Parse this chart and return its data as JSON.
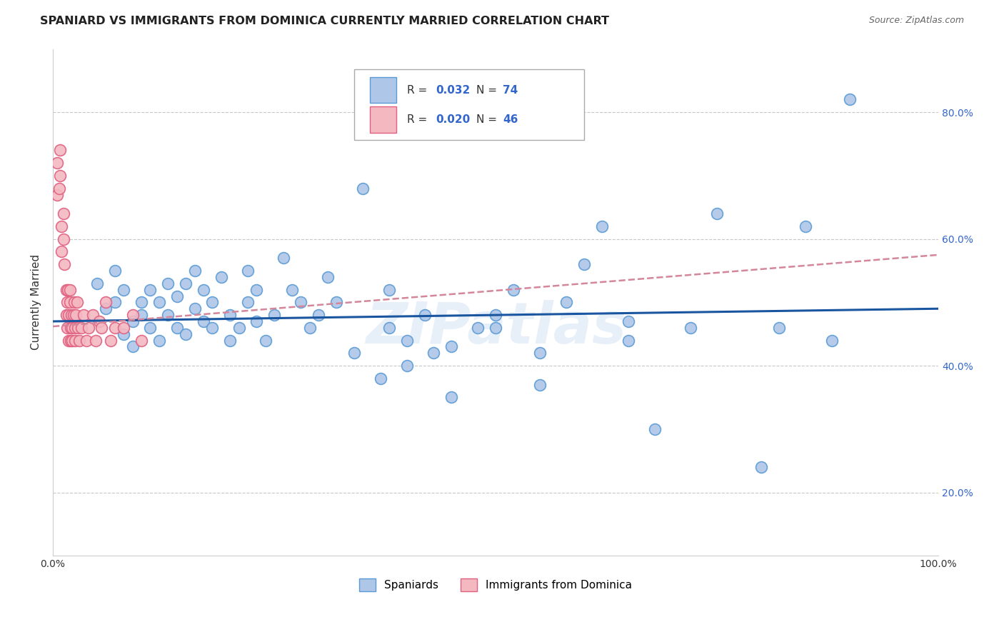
{
  "title": "SPANIARD VS IMMIGRANTS FROM DOMINICA CURRENTLY MARRIED CORRELATION CHART",
  "source_text": "Source: ZipAtlas.com",
  "ylabel": "Currently Married",
  "x_min": 0.0,
  "x_max": 1.0,
  "y_min": 0.1,
  "y_max": 0.9,
  "y_tick_labels": [
    "20.0%",
    "40.0%",
    "60.0%",
    "80.0%"
  ],
  "y_tick_values": [
    0.2,
    0.4,
    0.6,
    0.8
  ],
  "legend_r1": "R = 0.032",
  "legend_n1": "N = 74",
  "legend_r2": "R = 0.020",
  "legend_n2": "N = 46",
  "spaniard_color": "#aec6e8",
  "dominica_color": "#f4b8c1",
  "spaniard_edge": "#5b9bd5",
  "dominica_edge": "#e06080",
  "trendline_spaniard_color": "#1a56a0",
  "trendline_dominica_color": "#d4869a",
  "watermark": "ZIPatlas",
  "background_color": "#ffffff",
  "grid_color": "#c8c8c8",
  "spaniard_x": [
    0.02,
    0.05,
    0.06,
    0.07,
    0.07,
    0.08,
    0.08,
    0.09,
    0.09,
    0.1,
    0.1,
    0.11,
    0.11,
    0.12,
    0.12,
    0.13,
    0.13,
    0.14,
    0.14,
    0.15,
    0.15,
    0.16,
    0.16,
    0.17,
    0.17,
    0.18,
    0.18,
    0.19,
    0.2,
    0.2,
    0.21,
    0.22,
    0.22,
    0.23,
    0.23,
    0.24,
    0.25,
    0.26,
    0.27,
    0.28,
    0.29,
    0.3,
    0.31,
    0.32,
    0.34,
    0.35,
    0.37,
    0.38,
    0.4,
    0.4,
    0.42,
    0.43,
    0.45,
    0.48,
    0.5,
    0.52,
    0.55,
    0.58,
    0.6,
    0.62,
    0.65,
    0.65,
    0.68,
    0.72,
    0.75,
    0.8,
    0.82,
    0.85,
    0.88,
    0.9,
    0.38,
    0.45,
    0.5,
    0.55
  ],
  "spaniard_y": [
    0.47,
    0.53,
    0.49,
    0.55,
    0.5,
    0.45,
    0.52,
    0.47,
    0.43,
    0.48,
    0.5,
    0.46,
    0.52,
    0.44,
    0.5,
    0.48,
    0.53,
    0.46,
    0.51,
    0.45,
    0.53,
    0.49,
    0.55,
    0.47,
    0.52,
    0.46,
    0.5,
    0.54,
    0.48,
    0.44,
    0.46,
    0.55,
    0.5,
    0.47,
    0.52,
    0.44,
    0.48,
    0.57,
    0.52,
    0.5,
    0.46,
    0.48,
    0.54,
    0.5,
    0.42,
    0.68,
    0.38,
    0.52,
    0.4,
    0.44,
    0.48,
    0.42,
    0.43,
    0.46,
    0.48,
    0.52,
    0.42,
    0.5,
    0.56,
    0.62,
    0.44,
    0.47,
    0.3,
    0.46,
    0.64,
    0.24,
    0.46,
    0.62,
    0.44,
    0.82,
    0.46,
    0.35,
    0.46,
    0.37
  ],
  "dominica_x": [
    0.005,
    0.005,
    0.007,
    0.008,
    0.008,
    0.01,
    0.01,
    0.012,
    0.012,
    0.013,
    0.015,
    0.015,
    0.016,
    0.016,
    0.017,
    0.018,
    0.018,
    0.019,
    0.019,
    0.02,
    0.02,
    0.021,
    0.022,
    0.022,
    0.023,
    0.024,
    0.025,
    0.025,
    0.026,
    0.027,
    0.028,
    0.03,
    0.032,
    0.035,
    0.038,
    0.04,
    0.045,
    0.048,
    0.052,
    0.055,
    0.06,
    0.065,
    0.07,
    0.08,
    0.09,
    0.1
  ],
  "dominica_y": [
    0.67,
    0.72,
    0.68,
    0.7,
    0.74,
    0.58,
    0.62,
    0.64,
    0.6,
    0.56,
    0.48,
    0.52,
    0.5,
    0.46,
    0.52,
    0.44,
    0.48,
    0.52,
    0.5,
    0.46,
    0.44,
    0.48,
    0.44,
    0.46,
    0.48,
    0.5,
    0.44,
    0.46,
    0.48,
    0.5,
    0.46,
    0.44,
    0.46,
    0.48,
    0.44,
    0.46,
    0.48,
    0.44,
    0.47,
    0.46,
    0.5,
    0.44,
    0.46,
    0.46,
    0.48,
    0.44
  ],
  "trendline_spaniard_x0": 0.0,
  "trendline_spaniard_x1": 1.0,
  "trendline_spaniard_y0": 0.47,
  "trendline_spaniard_y1": 0.49,
  "trendline_dominica_x0": 0.0,
  "trendline_dominica_x1": 1.0,
  "trendline_dominica_y0": 0.462,
  "trendline_dominica_y1": 0.575
}
